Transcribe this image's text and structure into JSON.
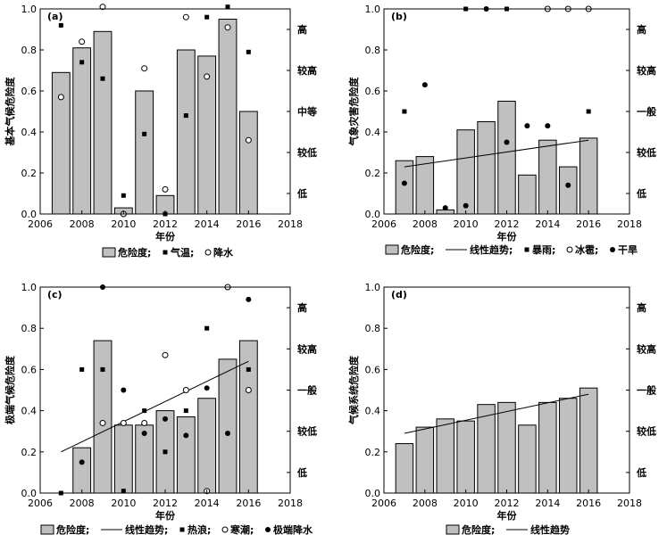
{
  "chart_data": [
    {
      "panel": "(a)",
      "type": "bar",
      "ylabel": "基本气候危险度",
      "xlabel": "年份",
      "xlim": [
        2006,
        2018
      ],
      "ylim": [
        0,
        1.0
      ],
      "x_ticks": [
        2006,
        2008,
        2010,
        2012,
        2014,
        2016,
        2018
      ],
      "y_ticks": [
        0.0,
        0.2,
        0.4,
        0.6,
        0.8,
        1.0
      ],
      "right_labels": [
        "高",
        "较高",
        "中等",
        "较低",
        "低"
      ],
      "legend": [
        "危险度;",
        "气温;",
        "降水"
      ],
      "x": [
        2007,
        2008,
        2009,
        2010,
        2011,
        2012,
        2013,
        2014,
        2015,
        2016
      ],
      "bars": [
        0.69,
        0.81,
        0.89,
        0.03,
        0.6,
        0.09,
        0.8,
        0.77,
        0.95,
        0.5
      ],
      "markers": [
        {
          "name": "气温",
          "style": "square",
          "values": [
            0.92,
            0.74,
            0.66,
            0.09,
            0.39,
            0.0,
            0.48,
            0.96,
            1.01,
            0.79
          ]
        },
        {
          "name": "降水",
          "style": "open-circle",
          "values": [
            0.57,
            0.84,
            1.01,
            0.0,
            0.71,
            0.12,
            0.96,
            0.67,
            0.91,
            0.36
          ]
        }
      ]
    },
    {
      "panel": "(b)",
      "type": "bar",
      "ylabel": "气象灾害危险度",
      "xlabel": "年份",
      "xlim": [
        2006,
        2018
      ],
      "ylim": [
        0,
        1.0
      ],
      "x_ticks": [
        2006,
        2008,
        2010,
        2012,
        2014,
        2016,
        2018
      ],
      "y_ticks": [
        0.0,
        0.2,
        0.4,
        0.6,
        0.8,
        1.0
      ],
      "right_labels": [
        "高",
        "较高",
        "一般",
        "较低",
        "低"
      ],
      "legend": [
        "危险度;",
        "线性趋势;",
        "暴雨;",
        "冰雹;",
        "干旱"
      ],
      "x": [
        2007,
        2008,
        2009,
        2010,
        2011,
        2012,
        2013,
        2014,
        2015,
        2016
      ],
      "bars": [
        0.26,
        0.28,
        0.02,
        0.41,
        0.45,
        0.55,
        0.19,
        0.36,
        0.23,
        0.37
      ],
      "trend": [
        0.23,
        0.36
      ],
      "markers": [
        {
          "name": "暴雨",
          "style": "square",
          "values": [
            0.5,
            null,
            null,
            1.0,
            null,
            1.0,
            null,
            null,
            null,
            0.5
          ]
        },
        {
          "name": "冰雹",
          "style": "open-circle",
          "values": [
            null,
            null,
            null,
            null,
            null,
            null,
            null,
            1.0,
            1.0,
            1.0
          ]
        },
        {
          "name": "干旱",
          "style": "filled-circle",
          "values": [
            0.15,
            0.63,
            0.03,
            0.04,
            1.0,
            0.35,
            0.43,
            0.43,
            0.14,
            null
          ]
        }
      ]
    },
    {
      "panel": "(c)",
      "type": "bar",
      "ylabel": "极端气候危险度",
      "xlabel": "年份",
      "xlim": [
        2006,
        2018
      ],
      "ylim": [
        0,
        1.0
      ],
      "x_ticks": [
        2006,
        2008,
        2010,
        2012,
        2014,
        2016,
        2018
      ],
      "y_ticks": [
        0.0,
        0.2,
        0.4,
        0.6,
        0.8,
        1.0
      ],
      "right_labels": [
        "高",
        "较高",
        "一般",
        "较低",
        "低"
      ],
      "legend": [
        "危险度;",
        "线性趋势;",
        "热浪;",
        "寒潮;",
        "极端降水"
      ],
      "x": [
        2007,
        2008,
        2009,
        2010,
        2011,
        2012,
        2013,
        2014,
        2015,
        2016
      ],
      "bars": [
        0.0,
        0.22,
        0.74,
        0.33,
        0.33,
        0.4,
        0.37,
        0.46,
        0.65,
        0.74
      ],
      "trend": [
        0.2,
        0.64
      ],
      "markers": [
        {
          "name": "热浪",
          "style": "square",
          "values": [
            0.0,
            0.6,
            0.6,
            0.01,
            0.4,
            0.2,
            0.4,
            0.8,
            null,
            0.6
          ]
        },
        {
          "name": "寒潮",
          "style": "open-circle",
          "values": [
            null,
            null,
            0.34,
            0.34,
            0.34,
            0.67,
            0.5,
            0.01,
            1.0,
            0.5
          ]
        },
        {
          "name": "极端降水",
          "style": "filled-circle",
          "values": [
            null,
            0.15,
            1.0,
            0.5,
            0.29,
            0.36,
            0.28,
            0.51,
            0.29,
            0.94
          ]
        }
      ]
    },
    {
      "panel": "(d)",
      "type": "bar",
      "ylabel": "气候系统危险度",
      "xlabel": "年份",
      "xlim": [
        2006,
        2018
      ],
      "ylim": [
        0,
        1.0
      ],
      "x_ticks": [
        2006,
        2008,
        2010,
        2012,
        2014,
        2016,
        2018
      ],
      "y_ticks": [
        0.0,
        0.2,
        0.4,
        0.6,
        0.8,
        1.0
      ],
      "right_labels": [
        "高",
        "较高",
        "一般",
        "较低",
        "低"
      ],
      "legend": [
        "危险度;",
        "线性趋势"
      ],
      "x": [
        2007,
        2008,
        2009,
        2010,
        2011,
        2012,
        2013,
        2014,
        2015,
        2016
      ],
      "bars": [
        0.24,
        0.32,
        0.36,
        0.35,
        0.43,
        0.44,
        0.33,
        0.44,
        0.46,
        0.51
      ],
      "trend": [
        0.29,
        0.48
      ],
      "markers": []
    }
  ],
  "colors": {
    "bar_fill": "#c0c0c0",
    "bar_stroke": "#000000",
    "marker": "#000000"
  }
}
